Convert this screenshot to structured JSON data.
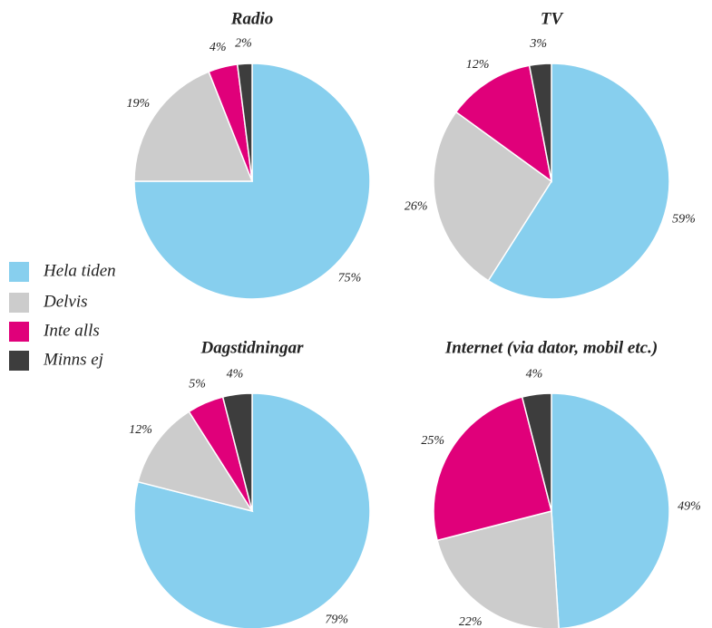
{
  "chart_data": [
    {
      "type": "pie",
      "title": "Radio",
      "categories": [
        "Hela tiden",
        "Delvis",
        "Inte alls",
        "Minns ej"
      ],
      "values": [
        75,
        19,
        4,
        2
      ],
      "value_labels": [
        "75%",
        "19%",
        "4%",
        "2%"
      ],
      "colors": [
        "#87cfee",
        "#cccccc",
        "#e0007a",
        "#3d3d3d"
      ]
    },
    {
      "type": "pie",
      "title": "TV",
      "categories": [
        "Hela tiden",
        "Delvis",
        "Inte alls",
        "Minns ej"
      ],
      "values": [
        59,
        26,
        12,
        3
      ],
      "value_labels": [
        "59%",
        "26%",
        "12%",
        "3%"
      ],
      "colors": [
        "#87cfee",
        "#cccccc",
        "#e0007a",
        "#3d3d3d"
      ]
    },
    {
      "type": "pie",
      "title": "Dagstidningar",
      "categories": [
        "Hela tiden",
        "Delvis",
        "Inte alls",
        "Minns ej"
      ],
      "values": [
        79,
        12,
        5,
        4
      ],
      "value_labels": [
        "79%",
        "12%",
        "5%",
        "4%"
      ],
      "colors": [
        "#87cfee",
        "#cccccc",
        "#e0007a",
        "#3d3d3d"
      ]
    },
    {
      "type": "pie",
      "title": "Internet (via dator, mobil etc.)",
      "categories": [
        "Hela tiden",
        "Delvis",
        "Inte alls",
        "Minns ej"
      ],
      "values": [
        49,
        22,
        25,
        4
      ],
      "value_labels": [
        "49%",
        "22%",
        "25%",
        "4%"
      ],
      "colors": [
        "#87cfee",
        "#cccccc",
        "#e0007a",
        "#3d3d3d"
      ]
    }
  ]
}
